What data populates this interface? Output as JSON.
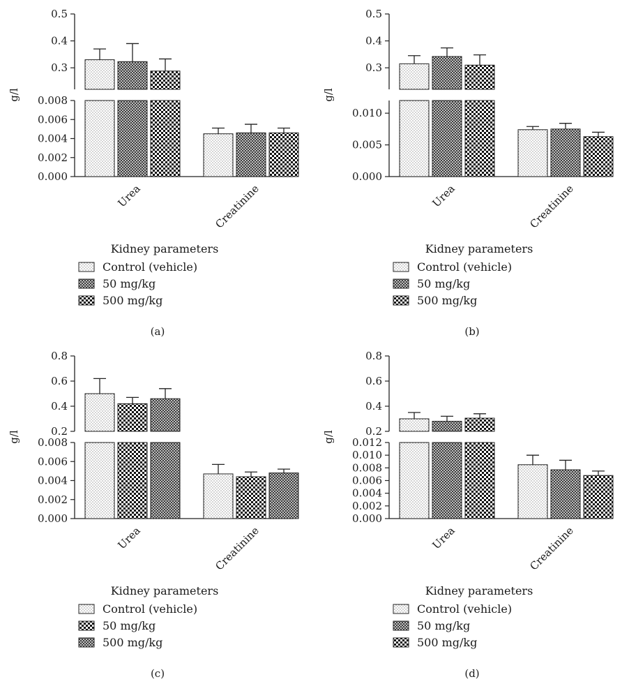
{
  "chart_data": [
    {
      "type": "bar",
      "panel_label": "(a)",
      "categories": [
        "Urea",
        "Creatinine"
      ],
      "xlabel": "Kidney parameters",
      "ylabel": "g/l",
      "broken_axis": true,
      "lower_ylim": [
        0,
        0.008
      ],
      "lower_ticks": [
        "0.000",
        "0.002",
        "0.004",
        "0.006",
        "0.008"
      ],
      "upper_ylim": [
        0.22,
        0.5
      ],
      "upper_ticks": [
        "0.3",
        "0.4",
        "0.5"
      ],
      "series": [
        {
          "name": "Control (vehicle)",
          "pattern": "dots",
          "values": [
            0.33,
            0.0045
          ],
          "errors": [
            0.04,
            0.0006
          ]
        },
        {
          "name": "50 mg/kg",
          "pattern": "crosshatch",
          "values": [
            0.323,
            0.0046
          ],
          "errors": [
            0.067,
            0.0009
          ]
        },
        {
          "name": "500 mg/kg",
          "pattern": "check",
          "values": [
            0.288,
            0.0046
          ],
          "errors": [
            0.045,
            0.0005
          ]
        }
      ]
    },
    {
      "type": "bar",
      "panel_label": "(b)",
      "categories": [
        "Urea",
        "Creatinine"
      ],
      "xlabel": "Kidney parameters",
      "ylabel": "g/l",
      "broken_axis": true,
      "lower_ylim": [
        0,
        0.012
      ],
      "lower_ticks": [
        "0.000",
        "0.005",
        "0.010"
      ],
      "upper_ylim": [
        0.22,
        0.5
      ],
      "upper_ticks": [
        "0.3",
        "0.4",
        "0.5"
      ],
      "series": [
        {
          "name": "Control (vehicle)",
          "pattern": "dots",
          "values": [
            0.315,
            0.0074
          ],
          "errors": [
            0.03,
            0.0005
          ]
        },
        {
          "name": "50 mg/kg",
          "pattern": "crosshatch",
          "values": [
            0.342,
            0.0075
          ],
          "errors": [
            0.032,
            0.0009
          ]
        },
        {
          "name": "500 mg/kg",
          "pattern": "check",
          "values": [
            0.31,
            0.0063
          ],
          "errors": [
            0.038,
            0.0007
          ]
        }
      ]
    },
    {
      "type": "bar",
      "panel_label": "(c)",
      "categories": [
        "Urea",
        "Creatinine"
      ],
      "xlabel": "Kidney parameters",
      "ylabel": "g/l",
      "broken_axis": true,
      "lower_ylim": [
        0,
        0.008
      ],
      "lower_ticks": [
        "0.000",
        "0.002",
        "0.004",
        "0.006",
        "0.008"
      ],
      "upper_ylim": [
        0.2,
        0.8
      ],
      "upper_ticks": [
        "0.2",
        "0.4",
        "0.6",
        "0.8"
      ],
      "series": [
        {
          "name": "Control (vehicle)",
          "pattern": "dots",
          "values": [
            0.5,
            0.0047
          ],
          "errors": [
            0.12,
            0.001
          ]
        },
        {
          "name": "50 mg/kg",
          "pattern": "check",
          "values": [
            0.42,
            0.0044
          ],
          "errors": [
            0.05,
            0.0005
          ]
        },
        {
          "name": "500 mg/kg",
          "pattern": "crosshatch",
          "values": [
            0.46,
            0.0048
          ],
          "errors": [
            0.08,
            0.0004
          ]
        }
      ]
    },
    {
      "type": "bar",
      "panel_label": "(d)",
      "categories": [
        "Urea",
        "Creatinine"
      ],
      "xlabel": "Kidney parameters",
      "ylabel": "g/l",
      "broken_axis": true,
      "lower_ylim": [
        0,
        0.012
      ],
      "lower_ticks": [
        "0.000",
        "0.002",
        "0.004",
        "0.006",
        "0.008",
        "0.010",
        "0.012"
      ],
      "upper_ylim": [
        0.2,
        0.8
      ],
      "upper_ticks": [
        "0.2",
        "0.4",
        "0.6",
        "0.8"
      ],
      "series": [
        {
          "name": "Control (vehicle)",
          "pattern": "dots",
          "values": [
            0.3,
            0.0085
          ],
          "errors": [
            0.05,
            0.0015
          ]
        },
        {
          "name": "50 mg/kg",
          "pattern": "crosshatch",
          "values": [
            0.28,
            0.0077
          ],
          "errors": [
            0.04,
            0.0015
          ]
        },
        {
          "name": "500 mg/kg",
          "pattern": "check",
          "values": [
            0.305,
            0.0068
          ],
          "errors": [
            0.035,
            0.0007
          ]
        }
      ]
    }
  ]
}
